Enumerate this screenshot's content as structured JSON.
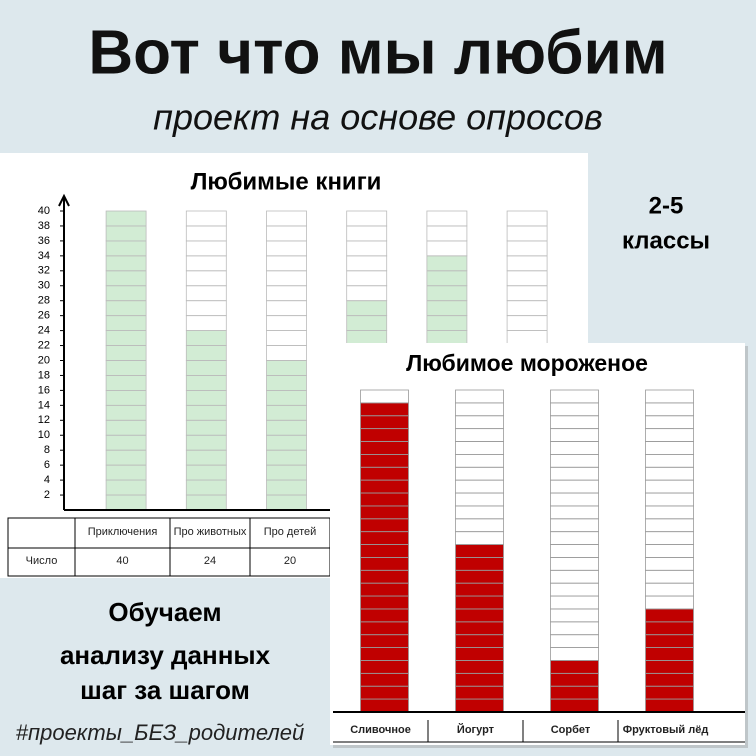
{
  "header": {
    "title": "Вот что мы любим",
    "subtitle": "проект на основе опросов"
  },
  "grades": [
    "2-5",
    "классы"
  ],
  "tagline": [
    "Обучаем",
    "анализу данных",
    "шаг за шагом"
  ],
  "hashtag": "#проекты_БЕЗ_родителей",
  "chart_data": [
    {
      "type": "bar",
      "title": "Любимые книги",
      "categories": [
        "Приключения",
        "Про животных",
        "Про детей",
        null,
        null,
        null
      ],
      "values": [
        40,
        24,
        20,
        28,
        34,
        null
      ],
      "row_label": "Число",
      "color": "#d2ecd4",
      "ylim": [
        0,
        40
      ],
      "yticks": [
        2,
        4,
        6,
        8,
        10,
        12,
        14,
        16,
        18,
        20,
        22,
        24,
        26,
        28,
        30,
        32,
        34,
        36,
        38,
        40
      ]
    },
    {
      "type": "bar",
      "title": "Любимое мороженое",
      "categories": [
        "Сливочное",
        "Йогурт",
        "Сорбет",
        "Фруктовый лёд"
      ],
      "values": [
        24,
        13,
        4,
        8
      ],
      "color": "#c00000",
      "ylim": [
        0,
        25
      ]
    }
  ]
}
